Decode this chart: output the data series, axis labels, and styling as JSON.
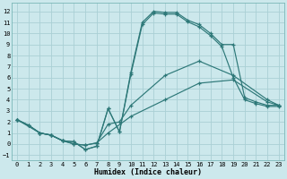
{
  "xlabel": "Humidex (Indice chaleur)",
  "bg_color": "#cce8ec",
  "grid_color": "#aad0d5",
  "line_color": "#2d7878",
  "xlim": [
    -0.5,
    23.5
  ],
  "ylim": [
    -1.5,
    12.8
  ],
  "xticks": [
    0,
    1,
    2,
    3,
    4,
    5,
    6,
    7,
    8,
    9,
    10,
    11,
    12,
    13,
    14,
    15,
    16,
    17,
    18,
    19,
    20,
    21,
    22,
    23
  ],
  "yticks": [
    -1,
    0,
    1,
    2,
    3,
    4,
    5,
    6,
    7,
    8,
    9,
    10,
    11,
    12
  ],
  "curve1_x": [
    0,
    1,
    2,
    3,
    4,
    5,
    6,
    7,
    8,
    9,
    10,
    11,
    12,
    13,
    14,
    15,
    16,
    17,
    18,
    19,
    20,
    21,
    22,
    23
  ],
  "curve1_y": [
    2.2,
    1.7,
    1.0,
    0.8,
    0.3,
    0.2,
    -0.5,
    -0.2,
    3.2,
    1.1,
    6.5,
    11.0,
    12.0,
    11.9,
    11.9,
    11.2,
    10.8,
    10.0,
    9.0,
    9.0,
    4.2,
    3.8,
    3.5,
    3.5
  ],
  "curve2_x": [
    0,
    1,
    2,
    3,
    4,
    5,
    6,
    7,
    8,
    9,
    10,
    11,
    12,
    13,
    14,
    15,
    16,
    17,
    18,
    19,
    20,
    21,
    22,
    23
  ],
  "curve2_y": [
    2.2,
    1.7,
    1.0,
    0.8,
    0.3,
    0.2,
    -0.5,
    -0.2,
    3.2,
    1.1,
    6.3,
    10.8,
    11.85,
    11.75,
    11.75,
    11.05,
    10.6,
    9.8,
    8.8,
    6.0,
    4.0,
    3.65,
    3.4,
    3.4
  ],
  "curve3_x": [
    0,
    1,
    2,
    3,
    4,
    5,
    6,
    7,
    8,
    9,
    10,
    13,
    16,
    19,
    22,
    23
  ],
  "curve3_y": [
    2.2,
    1.7,
    1.0,
    0.8,
    0.3,
    0.0,
    -0.1,
    0.1,
    1.8,
    2.0,
    3.5,
    6.2,
    7.5,
    6.2,
    4.0,
    3.5
  ],
  "curve4_x": [
    0,
    2,
    3,
    4,
    5,
    6,
    7,
    8,
    10,
    13,
    16,
    19,
    22,
    23
  ],
  "curve4_y": [
    2.2,
    1.0,
    0.8,
    0.3,
    0.0,
    -0.1,
    0.1,
    1.0,
    2.5,
    4.0,
    5.5,
    5.8,
    3.8,
    3.5
  ]
}
